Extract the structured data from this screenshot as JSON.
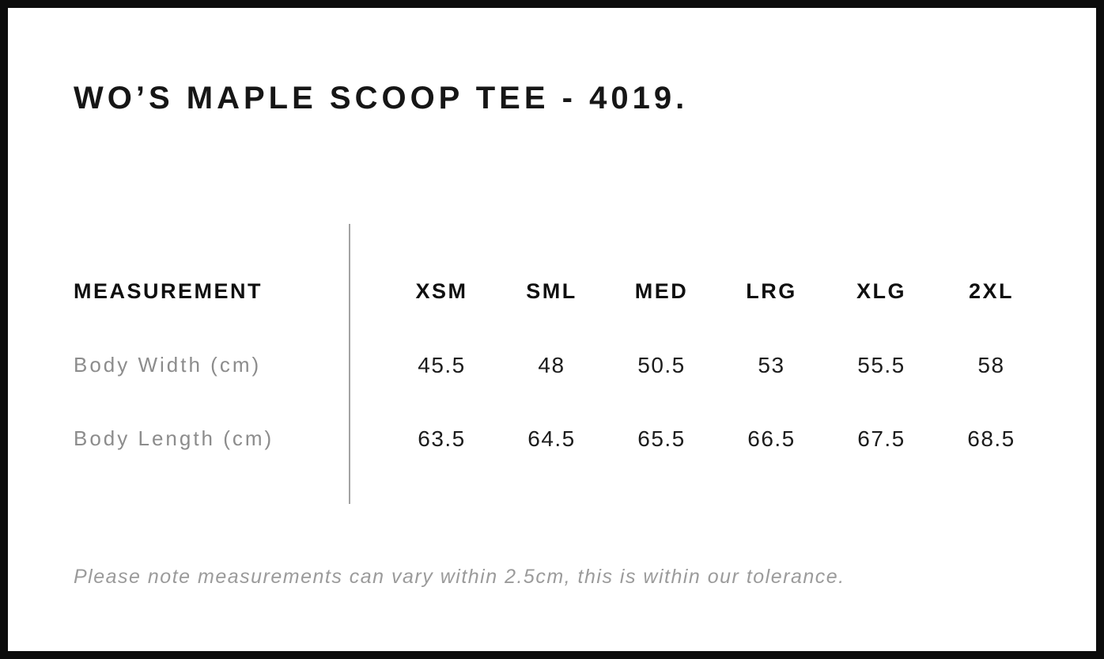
{
  "page": {
    "title": "WO’S MAPLE SCOOP TEE - 4019.",
    "note": "Please note measurements can vary within 2.5cm, this is within our tolerance."
  },
  "table": {
    "measurement_header": "MEASUREMENT",
    "size_headers": [
      "XSM",
      "SML",
      "MED",
      "LRG",
      "XLG",
      "2XL"
    ],
    "rows": [
      {
        "label": "Body Width (cm)",
        "values": [
          "45.5",
          "48",
          "50.5",
          "53",
          "55.5",
          "58"
        ]
      },
      {
        "label": "Body Length (cm)",
        "values": [
          "63.5",
          "64.5",
          "65.5",
          "66.5",
          "67.5",
          "68.5"
        ]
      }
    ]
  },
  "colors": {
    "background": "#ffffff",
    "frame_border": "#0c0c0c",
    "title_text": "#161616",
    "header_text": "#101010",
    "value_text": "#1c1c1c",
    "row_label_text": "#8c8c8c",
    "note_text": "#9b9b9b",
    "divider_line": "#a3a3a3"
  },
  "chart_data": {
    "type": "table",
    "title": "WO’S MAPLE SCOOP TEE - 4019.",
    "columns": [
      "MEASUREMENT",
      "XSM",
      "SML",
      "MED",
      "LRG",
      "XLG",
      "2XL"
    ],
    "rows": [
      [
        "Body Width (cm)",
        45.5,
        48,
        50.5,
        53,
        55.5,
        58
      ],
      [
        "Body Length (cm)",
        63.5,
        64.5,
        65.5,
        66.5,
        67.5,
        68.5
      ]
    ],
    "footnote": "Please note measurements can vary within 2.5cm, this is within our tolerance.",
    "layout_hints": {
      "units": "cm",
      "tolerance_cm": 2.5,
      "divider_between_label_and_values": true,
      "grid": "off"
    }
  }
}
